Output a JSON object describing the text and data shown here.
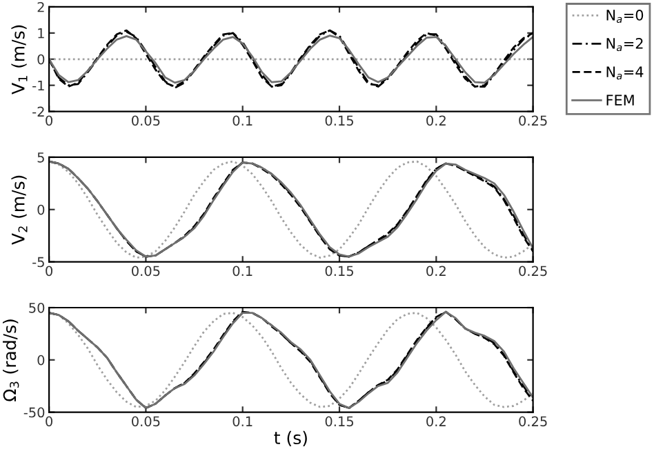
{
  "chart_data": [
    {
      "type": "line",
      "ylabel": "V$_{1}$ (m/s)",
      "xlim": [
        0,
        0.25
      ],
      "xticks": [
        0,
        0.05,
        0.1,
        0.15,
        0.2,
        0.25
      ],
      "ylim": [
        -2,
        2
      ],
      "yticks": [
        -2,
        -1,
        0,
        1,
        2
      ],
      "grid": false,
      "legend": "right",
      "x": [
        0,
        0.005,
        0.01,
        0.015,
        0.02,
        0.025,
        0.03,
        0.035,
        0.04,
        0.045,
        0.05,
        0.055,
        0.06,
        0.065,
        0.07,
        0.075,
        0.08,
        0.085,
        0.09,
        0.095,
        0.1,
        0.105,
        0.11,
        0.115,
        0.12,
        0.125,
        0.13,
        0.135,
        0.14,
        0.145,
        0.15,
        0.155,
        0.16,
        0.165,
        0.17,
        0.175,
        0.18,
        0.185,
        0.19,
        0.195,
        0.2,
        0.205,
        0.21,
        0.215,
        0.22,
        0.225,
        0.23,
        0.235,
        0.24,
        0.245,
        0.25
      ],
      "series": [
        {
          "name": "N$_{a}$=0",
          "color": "#a0a0a0",
          "line_style": "dotted",
          "values": [
            0,
            0,
            0,
            0,
            0,
            0,
            0,
            0,
            0,
            0,
            0,
            0,
            0,
            0,
            0,
            0,
            0,
            0,
            0,
            0,
            0,
            0,
            0,
            0,
            0,
            0,
            0,
            0,
            0,
            0,
            0,
            0,
            0,
            0,
            0,
            0,
            0,
            0,
            0,
            0,
            0,
            0,
            0,
            0,
            0,
            0,
            0,
            0,
            0,
            0,
            0
          ]
        },
        {
          "name": "N$_{a}$=2",
          "color": "#000000",
          "line_style": "dashdot",
          "values": [
            0,
            -0.7,
            -1.0,
            -0.95,
            -0.5,
            0,
            0.5,
            0.9,
            1.05,
            0.85,
            0.3,
            -0.3,
            -0.85,
            -1.1,
            -0.9,
            -0.45,
            0.05,
            0.5,
            0.9,
            1.0,
            0.65,
            0.05,
            -0.6,
            -1.05,
            -1.0,
            -0.55,
            0,
            0.5,
            0.9,
            1.1,
            0.9,
            0.3,
            -0.35,
            -0.9,
            -1.05,
            -0.75,
            -0.3,
            0.15,
            0.6,
            0.95,
            0.95,
            0.5,
            -0.1,
            -0.65,
            -1.05,
            -1.05,
            -0.6,
            -0.15,
            0.35,
            0.75,
            1.0
          ]
        },
        {
          "name": "N$_{a}$=4",
          "color": "#000000",
          "line_style": "dashed",
          "values": [
            0,
            -0.75,
            -1.05,
            -0.9,
            -0.45,
            0.05,
            0.55,
            0.95,
            1.1,
            0.8,
            0.2,
            -0.4,
            -0.9,
            -1.05,
            -0.85,
            -0.4,
            0.1,
            0.55,
            0.95,
            1.0,
            0.55,
            -0.05,
            -0.7,
            -1.05,
            -0.95,
            -0.5,
            0.05,
            0.55,
            0.95,
            1.1,
            0.85,
            0.2,
            -0.45,
            -0.95,
            -1.0,
            -0.7,
            -0.25,
            0.25,
            0.7,
            1.0,
            0.9,
            0.4,
            -0.2,
            -0.75,
            -1.05,
            -1.0,
            -0.55,
            -0.05,
            0.45,
            0.8,
            1.0
          ]
        },
        {
          "name": "FEM",
          "color": "#707070",
          "line_style": "solid",
          "values": [
            0,
            -0.6,
            -0.88,
            -0.8,
            -0.45,
            0,
            0.4,
            0.75,
            0.88,
            0.75,
            0.3,
            -0.15,
            -0.7,
            -0.9,
            -0.8,
            -0.45,
            0,
            0.4,
            0.75,
            0.85,
            0.6,
            0.1,
            -0.5,
            -0.88,
            -0.85,
            -0.5,
            -0.05,
            0.4,
            0.75,
            0.9,
            0.8,
            0.35,
            -0.2,
            -0.7,
            -0.88,
            -0.7,
            -0.3,
            0.1,
            0.5,
            0.82,
            0.85,
            0.5,
            0,
            -0.5,
            -0.88,
            -0.9,
            -0.6,
            -0.2,
            0.2,
            0.55,
            0.85
          ]
        }
      ]
    },
    {
      "type": "line",
      "ylabel": "V$_{2}$ (m/s)",
      "xlim": [
        0,
        0.25
      ],
      "xticks": [
        0,
        0.05,
        0.1,
        0.15,
        0.2,
        0.25
      ],
      "ylim": [
        -5,
        5
      ],
      "yticks": [
        -5,
        0,
        5
      ],
      "grid": false,
      "x": [
        0,
        0.005,
        0.01,
        0.015,
        0.02,
        0.025,
        0.03,
        0.035,
        0.04,
        0.045,
        0.05,
        0.055,
        0.06,
        0.065,
        0.07,
        0.075,
        0.08,
        0.085,
        0.09,
        0.095,
        0.1,
        0.105,
        0.11,
        0.115,
        0.12,
        0.125,
        0.13,
        0.135,
        0.14,
        0.145,
        0.15,
        0.155,
        0.16,
        0.165,
        0.17,
        0.175,
        0.18,
        0.185,
        0.19,
        0.195,
        0.2,
        0.205,
        0.21,
        0.215,
        0.22,
        0.225,
        0.23,
        0.235,
        0.24,
        0.245,
        0.25
      ],
      "series": [
        {
          "color": "#a0a0a0",
          "line_style": "dotted",
          "values": [
            4.6,
            4.3,
            3.6,
            2.5,
            1.1,
            -0.5,
            -1.9,
            -3.2,
            -4.1,
            -4.6,
            -4.5,
            -4.0,
            -3.0,
            -1.7,
            -0.2,
            1.4,
            2.7,
            3.8,
            4.4,
            4.6,
            4.2,
            3.4,
            2.2,
            0.8,
            -0.8,
            -2.2,
            -3.4,
            -4.2,
            -4.6,
            -4.4,
            -3.8,
            -2.7,
            -1.4,
            0.2,
            1.7,
            3.0,
            4.0,
            4.5,
            4.6,
            4.1,
            3.2,
            1.9,
            0.5,
            -1.1,
            -2.5,
            -3.6,
            -4.3,
            -4.6,
            -4.5,
            -4.0,
            -3.3
          ]
        },
        {
          "color": "#000000",
          "line_style": "dashdot",
          "values": [
            4.6,
            4.4,
            3.9,
            3.0,
            2.0,
            0.8,
            -0.5,
            -1.8,
            -3.0,
            -4.0,
            -4.5,
            -4.4,
            -3.8,
            -3.2,
            -2.6,
            -1.7,
            -0.5,
            1.0,
            2.4,
            3.7,
            4.5,
            4.4,
            4.0,
            3.4,
            2.5,
            1.5,
            0.3,
            -1.1,
            -2.5,
            -3.7,
            -4.4,
            -4.5,
            -4.1,
            -3.5,
            -3.0,
            -2.4,
            -1.5,
            -0.2,
            1.2,
            2.7,
            3.9,
            4.4,
            4.2,
            3.7,
            3.3,
            2.8,
            2.2,
            1.0,
            -0.6,
            -2.4,
            -3.9
          ]
        },
        {
          "color": "#000000",
          "line_style": "dashed",
          "values": [
            4.6,
            4.4,
            3.9,
            3.0,
            2.0,
            0.8,
            -0.5,
            -1.8,
            -3.0,
            -4.0,
            -4.5,
            -4.4,
            -3.8,
            -3.2,
            -2.5,
            -1.6,
            -0.4,
            1.1,
            2.5,
            3.8,
            4.5,
            4.4,
            3.9,
            3.3,
            2.4,
            1.4,
            0.2,
            -1.2,
            -2.6,
            -3.8,
            -4.4,
            -4.5,
            -4.1,
            -3.5,
            -2.9,
            -2.3,
            -1.4,
            -0.1,
            1.3,
            2.8,
            3.9,
            4.4,
            4.2,
            3.7,
            3.2,
            2.7,
            2.1,
            0.9,
            -0.8,
            -2.6,
            -4.0
          ]
        },
        {
          "color": "#707070",
          "line_style": "solid",
          "values": [
            4.6,
            4.4,
            3.9,
            3.0,
            2.0,
            0.8,
            -0.5,
            -1.8,
            -2.9,
            -3.9,
            -4.5,
            -4.4,
            -3.8,
            -3.2,
            -2.6,
            -1.8,
            -0.6,
            0.9,
            2.3,
            3.6,
            4.5,
            4.4,
            4.0,
            3.4,
            2.6,
            1.6,
            0.4,
            -1.0,
            -2.4,
            -3.6,
            -4.3,
            -4.5,
            -4.2,
            -3.6,
            -3.1,
            -2.6,
            -1.7,
            -0.4,
            1.0,
            2.5,
            3.7,
            4.4,
            4.3,
            3.8,
            3.4,
            3.0,
            2.5,
            1.4,
            -0.2,
            -2.0,
            -3.7
          ]
        }
      ]
    },
    {
      "type": "line",
      "xlabel": "t (s)",
      "ylabel": "Ω$_{3}$ (rad/s)",
      "xlim": [
        0,
        0.25
      ],
      "xticks": [
        0,
        0.05,
        0.1,
        0.15,
        0.2,
        0.25
      ],
      "ylim": [
        -50,
        50
      ],
      "yticks": [
        -50,
        0,
        50
      ],
      "grid": false,
      "x": [
        0,
        0.005,
        0.01,
        0.015,
        0.02,
        0.025,
        0.03,
        0.035,
        0.04,
        0.045,
        0.05,
        0.055,
        0.06,
        0.065,
        0.07,
        0.075,
        0.08,
        0.085,
        0.09,
        0.095,
        0.1,
        0.105,
        0.11,
        0.115,
        0.12,
        0.125,
        0.13,
        0.135,
        0.14,
        0.145,
        0.15,
        0.155,
        0.16,
        0.165,
        0.17,
        0.175,
        0.18,
        0.185,
        0.19,
        0.195,
        0.2,
        0.205,
        0.21,
        0.215,
        0.22,
        0.225,
        0.23,
        0.235,
        0.24,
        0.245,
        0.25
      ],
      "series": [
        {
          "color": "#a0a0a0",
          "line_style": "dotted",
          "values": [
            45,
            43,
            35,
            24,
            11,
            -5,
            -19,
            -31,
            -40,
            -45,
            -44,
            -39,
            -29,
            -16,
            -2,
            13,
            27,
            37,
            44,
            45,
            41,
            33,
            22,
            8,
            -8,
            -22,
            -33,
            -41,
            -45,
            -44,
            -37,
            -27,
            -13,
            2,
            16,
            29,
            39,
            44,
            45,
            40,
            31,
            19,
            5,
            -11,
            -24,
            -35,
            -43,
            -45,
            -44,
            -39,
            -32
          ]
        },
        {
          "color": "#000000",
          "line_style": "dashdot",
          "values": [
            45,
            43,
            37,
            28,
            20,
            12,
            2,
            -12,
            -25,
            -38,
            -46,
            -42,
            -34,
            -27,
            -22,
            -14,
            -3,
            9,
            23,
            36,
            45,
            45,
            40,
            33,
            25,
            16,
            9,
            -1,
            -16,
            -31,
            -43,
            -46,
            -39,
            -31,
            -24,
            -20,
            -10,
            4,
            18,
            30,
            40,
            46,
            39,
            30,
            25,
            22,
            16,
            5,
            -11,
            -25,
            -38
          ]
        },
        {
          "color": "#000000",
          "line_style": "dashed",
          "values": [
            45,
            43,
            37,
            28,
            20,
            12,
            2,
            -12,
            -25,
            -38,
            -46,
            -42,
            -34,
            -27,
            -22,
            -13,
            -2,
            10,
            24,
            37,
            46,
            45,
            40,
            32,
            25,
            16,
            8,
            -2,
            -17,
            -32,
            -43,
            -46,
            -39,
            -31,
            -24,
            -19,
            -9,
            5,
            19,
            31,
            41,
            46,
            39,
            30,
            25,
            21,
            15,
            4,
            -12,
            -27,
            -39
          ]
        },
        {
          "color": "#707070",
          "line_style": "solid",
          "values": [
            45,
            43,
            37,
            28,
            20,
            12,
            2,
            -12,
            -25,
            -38,
            -46,
            -42,
            -34,
            -27,
            -23,
            -15,
            -4,
            8,
            22,
            35,
            45,
            45,
            40,
            33,
            26,
            17,
            10,
            0,
            -15,
            -30,
            -42,
            -46,
            -40,
            -32,
            -25,
            -22,
            -12,
            2,
            16,
            28,
            38,
            46,
            40,
            30,
            26,
            23,
            18,
            8,
            -8,
            -22,
            -36
          ]
        }
      ]
    }
  ]
}
